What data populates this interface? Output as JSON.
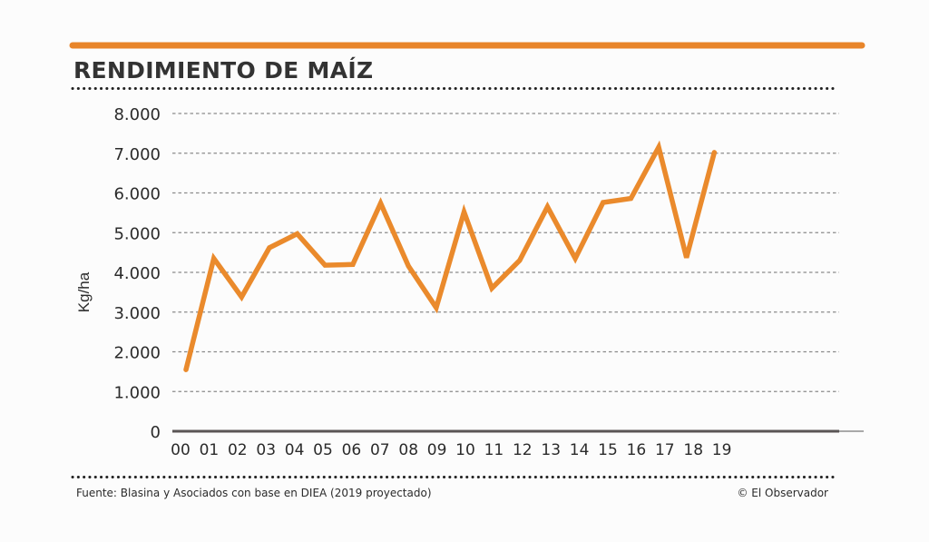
{
  "header": {
    "title": "RENDIMIENTO DE MAÍZ"
  },
  "footer": {
    "source": "Fuente: Blasina y Asociados con base en DIEA (2019 proyectado)",
    "credit": "© El Observador"
  },
  "colors": {
    "accent": "#e8852a",
    "line": "#ea8a2c",
    "text": "#2b2b2b",
    "grid": "#8a8a8a",
    "baseline": "#5a5555"
  },
  "chart_data": {
    "type": "line",
    "title": "RENDIMIENTO DE MAÍZ",
    "xlabel": "",
    "ylabel": "Kg/ha",
    "categories": [
      "00",
      "01",
      "02",
      "03",
      "04",
      "05",
      "06",
      "07",
      "08",
      "09",
      "10",
      "11",
      "12",
      "13",
      "14",
      "15",
      "16",
      "17",
      "18",
      "19"
    ],
    "series": [
      {
        "name": "Rendimiento de maíz",
        "values": [
          1550,
          4350,
          3380,
          4620,
          4970,
          4180,
          4200,
          5740,
          4160,
          3110,
          5520,
          3600,
          4300,
          5650,
          4350,
          5760,
          5860,
          7150,
          4370,
          7020
        ]
      }
    ],
    "yticks": [
      0,
      1000,
      2000,
      3000,
      4000,
      5000,
      6000,
      7000,
      8000
    ],
    "ytick_labels": [
      "0",
      "1.000",
      "2.000",
      "3.000",
      "4.000",
      "5.000",
      "6.000",
      "7.000",
      "8.000"
    ],
    "ylim": [
      0,
      8000
    ],
    "grid": true,
    "legend": "none",
    "note": "2019 proyectado"
  }
}
